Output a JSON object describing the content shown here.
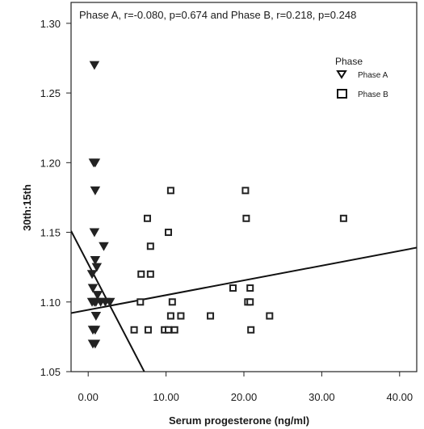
{
  "chart_data": {
    "type": "scatter",
    "title": "Phase A, r=-0.080, p=0.674 and Phase B, r=0.218, p=0.248",
    "xlabel": "Serum progesterone (ng/ml)",
    "ylabel": "30th:15th",
    "xlim": [
      -2.2,
      42.2
    ],
    "ylim": [
      1.05,
      1.315
    ],
    "x_ticks": [
      "0.00",
      "10.00",
      "20.00",
      "30.00",
      "40.00"
    ],
    "x_tick_values": [
      0,
      10,
      20,
      30,
      40
    ],
    "y_ticks": [
      "1.05",
      "1.10",
      "1.15",
      "1.20",
      "1.25",
      "1.30"
    ],
    "y_tick_values": [
      1.05,
      1.1,
      1.15,
      1.2,
      1.25,
      1.3
    ],
    "legend": {
      "title": "Phase",
      "placement": "top-right",
      "entries": [
        "Phase A",
        "Phase B"
      ]
    },
    "series": [
      {
        "name": "Phase A",
        "marker": "triangle-down",
        "points": [
          [
            0.8,
            1.27
          ],
          [
            0.7,
            1.2
          ],
          [
            0.9,
            1.2
          ],
          [
            0.9,
            1.18
          ],
          [
            0.8,
            1.15
          ],
          [
            2.0,
            1.14
          ],
          [
            0.9,
            1.13
          ],
          [
            1.1,
            1.125
          ],
          [
            0.5,
            1.12
          ],
          [
            0.6,
            1.11
          ],
          [
            1.2,
            1.105
          ],
          [
            0.5,
            1.1
          ],
          [
            0.8,
            1.1
          ],
          [
            1.0,
            1.1
          ],
          [
            1.6,
            1.1
          ],
          [
            2.2,
            1.1
          ],
          [
            2.8,
            1.1
          ],
          [
            1.0,
            1.09
          ],
          [
            0.6,
            1.08
          ],
          [
            0.9,
            1.08
          ],
          [
            0.6,
            1.07
          ],
          [
            0.9,
            1.07
          ]
        ],
        "fit_line": {
          "x": [
            -2.2,
            7.2
          ],
          "y": [
            1.151,
            1.05
          ]
        }
      },
      {
        "name": "Phase B",
        "marker": "square-open",
        "points": [
          [
            10.6,
            1.18
          ],
          [
            20.2,
            1.18
          ],
          [
            7.6,
            1.16
          ],
          [
            20.3,
            1.16
          ],
          [
            32.8,
            1.16
          ],
          [
            10.3,
            1.15
          ],
          [
            8.0,
            1.14
          ],
          [
            6.8,
            1.12
          ],
          [
            8.0,
            1.12
          ],
          [
            18.6,
            1.11
          ],
          [
            20.8,
            1.11
          ],
          [
            6.7,
            1.1
          ],
          [
            10.8,
            1.1
          ],
          [
            20.5,
            1.1
          ],
          [
            20.8,
            1.1
          ],
          [
            10.6,
            1.09
          ],
          [
            11.9,
            1.09
          ],
          [
            15.7,
            1.09
          ],
          [
            23.3,
            1.09
          ],
          [
            5.9,
            1.08
          ],
          [
            7.7,
            1.08
          ],
          [
            9.8,
            1.08
          ],
          [
            10.3,
            1.08
          ],
          [
            11.1,
            1.08
          ],
          [
            20.9,
            1.08
          ]
        ],
        "fit_line": {
          "x": [
            -2.2,
            42.2
          ],
          "y": [
            1.092,
            1.139
          ]
        }
      }
    ]
  }
}
